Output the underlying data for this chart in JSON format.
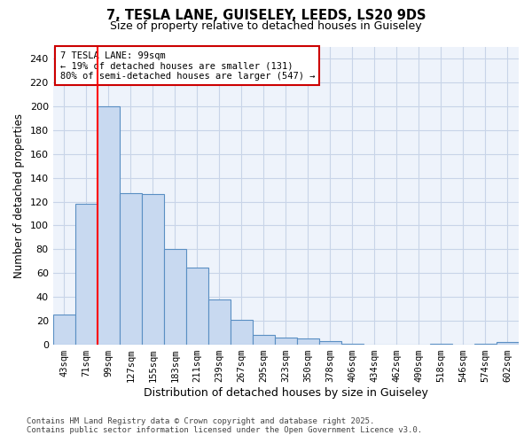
{
  "title_line1": "7, TESLA LANE, GUISELEY, LEEDS, LS20 9DS",
  "title_line2": "Size of property relative to detached houses in Guiseley",
  "xlabel": "Distribution of detached houses by size in Guiseley",
  "ylabel": "Number of detached properties",
  "bar_labels": [
    "43sqm",
    "71sqm",
    "99sqm",
    "127sqm",
    "155sqm",
    "183sqm",
    "211sqm",
    "239sqm",
    "267sqm",
    "295sqm",
    "323sqm",
    "350sqm",
    "378sqm",
    "406sqm",
    "434sqm",
    "462sqm",
    "490sqm",
    "518sqm",
    "546sqm",
    "574sqm",
    "602sqm"
  ],
  "bar_values": [
    25,
    118,
    200,
    127,
    126,
    80,
    65,
    38,
    21,
    8,
    6,
    5,
    3,
    1,
    0,
    0,
    0,
    1,
    0,
    1,
    2
  ],
  "bar_color": "#c8d9f0",
  "bar_edge_color": "#5a8fc3",
  "grid_color": "#c8d4e8",
  "background_color": "#ffffff",
  "plot_bg_color": "#eef3fb",
  "red_line_index": 2,
  "annotation_text": "7 TESLA LANE: 99sqm\n← 19% of detached houses are smaller (131)\n80% of semi-detached houses are larger (547) →",
  "annotation_box_color": "#ffffff",
  "annotation_box_edge": "#cc0000",
  "ylim": [
    0,
    250
  ],
  "yticks": [
    0,
    20,
    40,
    60,
    80,
    100,
    120,
    140,
    160,
    180,
    200,
    220,
    240
  ],
  "footer_line1": "Contains HM Land Registry data © Crown copyright and database right 2025.",
  "footer_line2": "Contains public sector information licensed under the Open Government Licence v3.0."
}
